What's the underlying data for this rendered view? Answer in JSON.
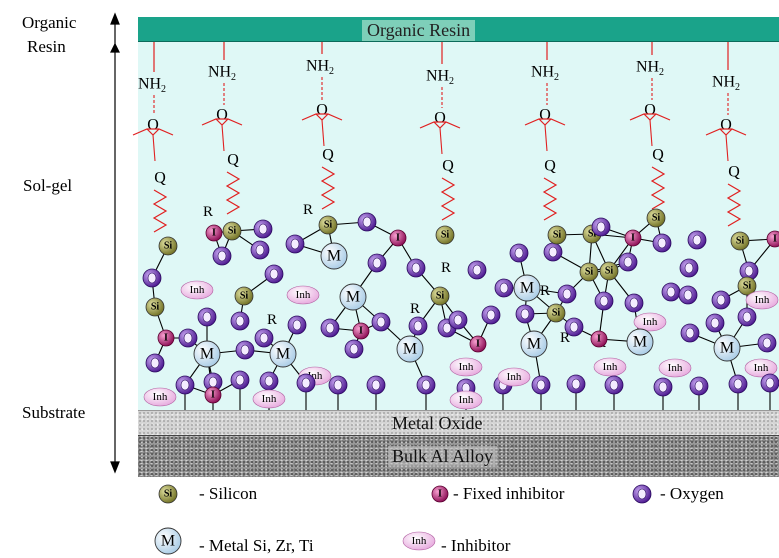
{
  "side_labels": {
    "organic_resin_1": "Organic",
    "organic_resin_2": "Resin",
    "sol_gel": "Sol-gel",
    "substrate": "Substrate"
  },
  "layers": {
    "organic_resin": "Organic Resin",
    "metal_oxide": "Metal Oxide",
    "bulk_alloy": "Bulk Al Alloy"
  },
  "molecule_labels": {
    "amine": "NH",
    "amine_sub": "2",
    "epoxy_oxygen": "O",
    "ether_oxygen": "Q",
    "r_group": "R",
    "silicon": "Si",
    "metal": "M",
    "oxygen": "O",
    "fixed_inhibitor": "I",
    "inhibitor": "Inh"
  },
  "legend": {
    "silicon": "- Silicon",
    "fixed_inhibitor": "- Fixed inhibitor",
    "oxygen": "- Oxygen",
    "metal": "- Metal Si, Zr, Ti",
    "inhibitor": "-  Inhibitor"
  },
  "colors": {
    "resin": "#1aa38a",
    "sol_gel_bg": "#dff8f6",
    "silicon": "#8b8b3a",
    "fixed_inhibitor": "#b0106a",
    "oxygen": "#6a2bb0",
    "metal": "#cfe6f7",
    "inhibitor": "#f3c6ee",
    "epoxy": "#e02020"
  }
}
